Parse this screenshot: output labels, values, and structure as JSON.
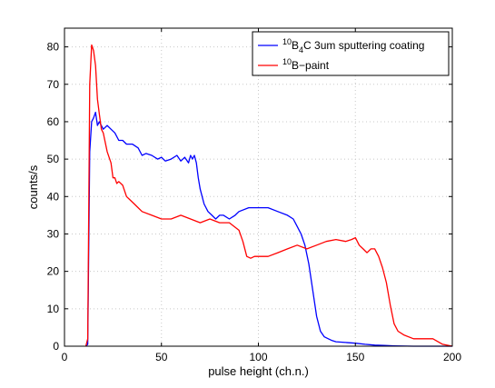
{
  "chart_data": {
    "type": "line",
    "title": "",
    "xlabel": "pulse height (ch.n.)",
    "ylabel": "counts/s",
    "xlim": [
      0,
      200
    ],
    "ylim": [
      0,
      85
    ],
    "xticks": [
      0,
      50,
      100,
      150,
      200
    ],
    "yticks": [
      0,
      10,
      20,
      30,
      40,
      50,
      60,
      70,
      80
    ],
    "grid": true,
    "legend_position": "top-right",
    "series": [
      {
        "name": "B4C 3um sputtering coating",
        "legend_sup": "10",
        "legend_base": "B",
        "legend_sub": "4",
        "legend_rest": "C 3um sputtering coating",
        "color": "#0000ff",
        "x": [
          11,
          12,
          13,
          14,
          15,
          16,
          17,
          18,
          20,
          22,
          24,
          26,
          28,
          30,
          32,
          35,
          38,
          40,
          42,
          45,
          48,
          50,
          52,
          55,
          58,
          60,
          62,
          64,
          65,
          66,
          67,
          68,
          69,
          70,
          72,
          74,
          76,
          78,
          80,
          82,
          85,
          88,
          90,
          95,
          100,
          105,
          110,
          115,
          118,
          120,
          122,
          124,
          126,
          128,
          130,
          132,
          134,
          136,
          138,
          140,
          145,
          150,
          155,
          160,
          165,
          170,
          180,
          190,
          200
        ],
        "y": [
          0,
          0.5,
          52,
          60,
          61,
          62.5,
          59,
          60,
          58,
          59,
          58,
          57,
          55,
          55,
          54,
          54,
          53,
          51,
          51.5,
          51,
          50,
          50.5,
          49.5,
          50,
          51,
          49.5,
          50.5,
          49,
          51,
          50,
          51,
          49,
          45,
          42,
          38,
          36,
          35,
          34,
          35,
          35,
          34,
          35,
          36,
          37,
          37,
          37,
          36,
          35,
          34,
          32,
          30,
          27,
          22,
          15,
          8,
          4,
          2.5,
          2,
          1.5,
          1.2,
          1,
          0.8,
          0.5,
          0.3,
          0.2,
          0.1,
          0,
          0,
          0
        ]
      },
      {
        "name": "B-paint",
        "legend_sup": "10",
        "legend_base": "B−paint",
        "legend_sub": "",
        "legend_rest": "",
        "color": "#ff0000",
        "x": [
          11,
          12,
          13,
          14,
          15,
          16,
          17,
          18,
          19,
          20,
          22,
          24,
          25,
          26,
          27,
          28,
          30,
          32,
          34,
          36,
          38,
          40,
          45,
          50,
          55,
          60,
          65,
          70,
          75,
          80,
          85,
          90,
          92,
          94,
          96,
          98,
          100,
          105,
          110,
          115,
          120,
          125,
          130,
          135,
          140,
          145,
          148,
          150,
          152,
          154,
          156,
          158,
          160,
          162,
          164,
          166,
          168,
          170,
          172,
          175,
          180,
          185,
          190,
          195,
          200
        ],
        "y": [
          0,
          2,
          70,
          80.5,
          79,
          75,
          66,
          62,
          58,
          57,
          52,
          49,
          45,
          45,
          43.5,
          44,
          43,
          40,
          39,
          38,
          37,
          36,
          35,
          34,
          34,
          35,
          34,
          33,
          34,
          33,
          33,
          31,
          28,
          24,
          23.5,
          24,
          24,
          24,
          25,
          26,
          27,
          26,
          27,
          28,
          28.5,
          28,
          28.5,
          29,
          27,
          26,
          25,
          26,
          26,
          24,
          21,
          17,
          11,
          6,
          4,
          3,
          2,
          2,
          2,
          0.5,
          0
        ]
      }
    ]
  }
}
